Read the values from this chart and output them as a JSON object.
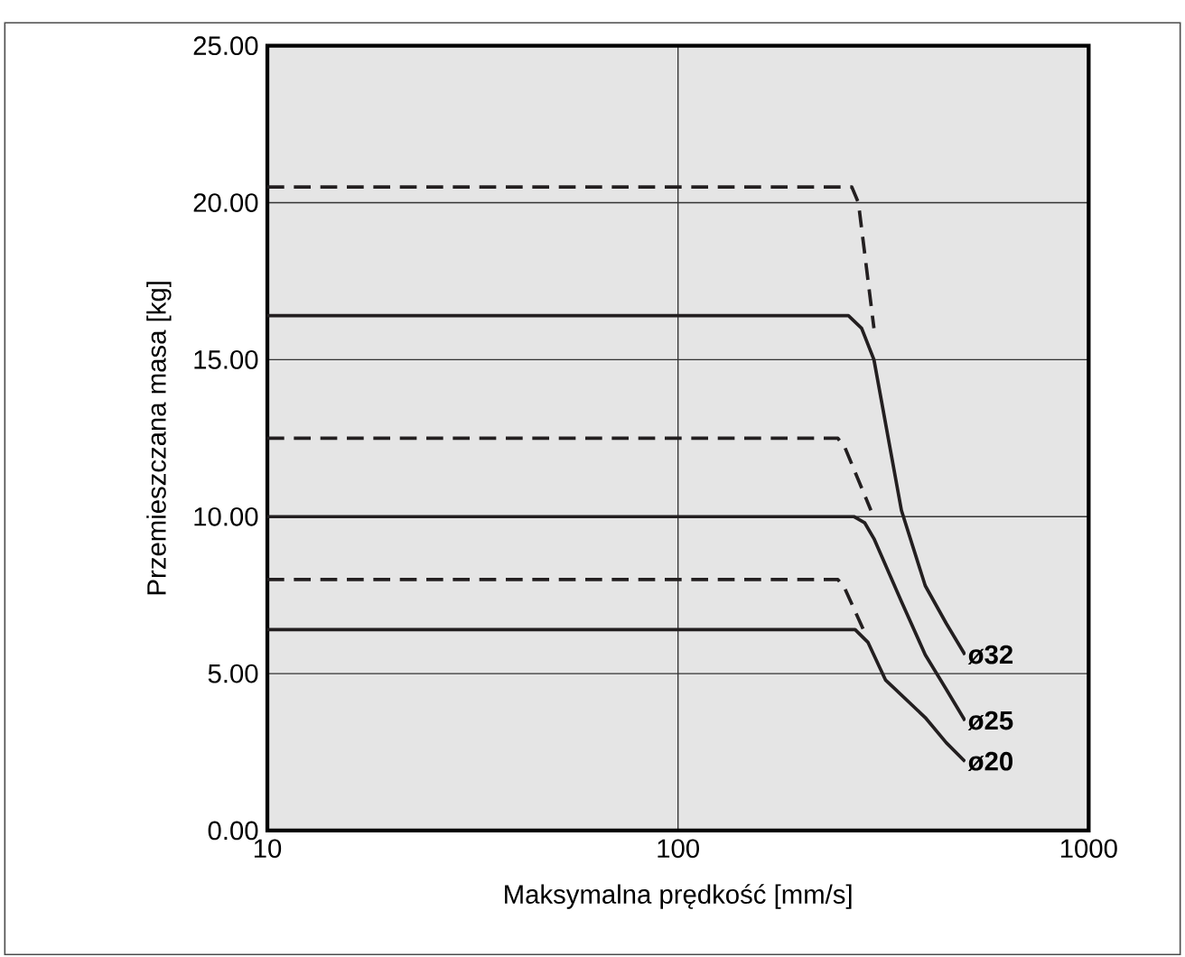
{
  "chart_data": {
    "type": "line",
    "xlabel": "Maksymalna prędkość [mm/s]",
    "ylabel": "Przemieszczana masa [kg]",
    "log": "x",
    "grid": true,
    "line_style": "solid",
    "xlim": [
      10,
      1000
    ],
    "xticks": [
      10,
      100,
      1000
    ],
    "ylim": [
      0,
      25
    ],
    "yticks": [
      {
        "value": 0,
        "label": "0.00"
      },
      {
        "value": 5,
        "label": "5.00"
      },
      {
        "value": 10,
        "label": "10.00"
      },
      {
        "value": 15,
        "label": "15.00"
      },
      {
        "value": 20,
        "label": "20.00"
      },
      {
        "value": 25,
        "label": "25.00"
      }
    ],
    "series": [
      {
        "name": "ø32",
        "color": "#231f20",
        "x": [
          10,
          260,
          280,
          300,
          350,
          400,
          450,
          500
        ],
        "values": [
          16.4,
          16.4,
          16.0,
          15.0,
          10.2,
          7.8,
          6.6,
          5.6
        ]
      },
      {
        "color": "#231f20",
        "line_style": "dashed",
        "x": [
          10,
          265,
          275,
          300
        ],
        "values": [
          20.5,
          20.5,
          20.0,
          16.0
        ]
      },
      {
        "name": "ø25",
        "color": "#231f20",
        "x": [
          10,
          268,
          285,
          300,
          350,
          400,
          450,
          500
        ],
        "values": [
          10.0,
          10.0,
          9.8,
          9.3,
          7.3,
          5.6,
          4.5,
          3.5
        ]
      },
      {
        "color": "#231f20",
        "line_style": "dashed",
        "x": [
          10,
          245,
          255,
          295
        ],
        "values": [
          12.5,
          12.5,
          12.2,
          10.2
        ]
      },
      {
        "name": "ø20",
        "color": "#231f20",
        "x": [
          10,
          270,
          290,
          320,
          400,
          450,
          500
        ],
        "values": [
          6.4,
          6.4,
          6.0,
          4.8,
          3.6,
          2.8,
          2.2
        ]
      },
      {
        "color": "#231f20",
        "line_style": "dashed",
        "x": [
          10,
          245,
          255,
          285
        ],
        "values": [
          8.0,
          8.0,
          7.7,
          6.3
        ]
      }
    ]
  }
}
